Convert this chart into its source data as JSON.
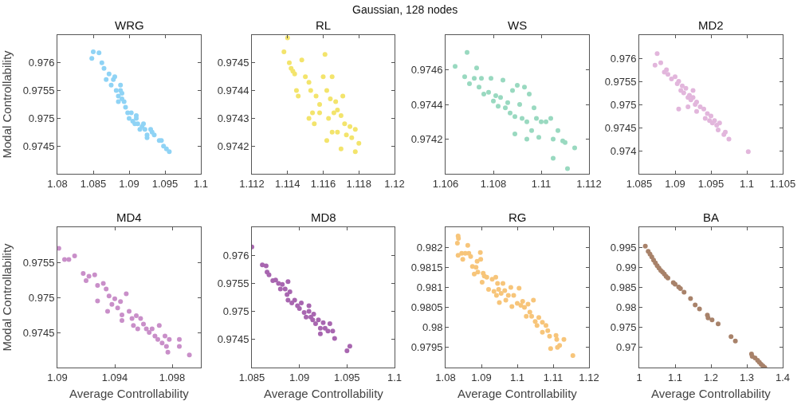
{
  "chart_data": [
    {
      "type": "scatter",
      "title": "WRG",
      "ylabel": "Modal Controllability",
      "annotations": [
        "Gaussian, 128 nodes"
      ],
      "color": "#8fd3f5",
      "marker": "circle",
      "xlim": [
        1.08,
        1.1
      ],
      "ylim": [
        0.974,
        0.9765
      ],
      "xticks": [
        1.08,
        1.085,
        1.09,
        1.095,
        1.1
      ],
      "yticks": [
        0.9745,
        0.975,
        0.9755,
        0.976
      ],
      "x": [
        1.0848,
        1.085,
        1.0858,
        1.0862,
        1.0865,
        1.0868,
        1.0872,
        1.0875,
        1.0878,
        1.088,
        1.0882,
        1.0888,
        1.0885,
        1.089,
        1.0893,
        1.0895,
        1.0885,
        1.0898,
        1.09,
        1.0903,
        1.0905,
        1.0908,
        1.091,
        1.0912,
        1.0915,
        1.0918,
        1.092,
        1.0922,
        1.0925,
        1.093,
        1.0932,
        1.0935,
        1.0925,
        1.0942,
        1.0945,
        1.0948,
        1.0952,
        1.0956,
        1.089,
        1.0888,
        1.091
      ],
      "values": [
        0.97608,
        0.9762,
        0.97618,
        0.976,
        0.9759,
        0.9757,
        0.9758,
        0.9756,
        0.9757,
        0.97575,
        0.9755,
        0.9755,
        0.9754,
        0.97545,
        0.9753,
        0.9752,
        0.9753,
        0.9751,
        0.975,
        0.9751,
        0.97495,
        0.9749,
        0.975,
        0.9749,
        0.9748,
        0.97485,
        0.9749,
        0.9748,
        0.9747,
        0.9748,
        0.97475,
        0.9747,
        0.97465,
        0.9746,
        0.9746,
        0.9745,
        0.97445,
        0.9744,
        0.97535,
        0.9756,
        0.97505
      ]
    },
    {
      "type": "scatter",
      "title": "RL",
      "color": "#f3e46c",
      "marker": "circle",
      "xlim": [
        1.112,
        1.12
      ],
      "ylim": [
        0.9741,
        0.9746
      ],
      "xticks": [
        1.112,
        1.114,
        1.116,
        1.118,
        1.12
      ],
      "yticks": [
        0.9742,
        0.9743,
        0.9744,
        0.9745
      ],
      "x": [
        1.1138,
        1.114,
        1.1141,
        1.1142,
        1.1143,
        1.1144,
        1.1145,
        1.1146,
        1.1148,
        1.115,
        1.1152,
        1.1153,
        1.1154,
        1.1155,
        1.1156,
        1.1158,
        1.116,
        1.1161,
        1.1162,
        1.1164,
        1.1165,
        1.1166,
        1.1167,
        1.1168,
        1.117,
        1.1171,
        1.1172,
        1.1173,
        1.1175,
        1.1176,
        1.1178,
        1.118,
        1.1162,
        1.117,
        1.1152,
        1.1165,
        1.1158,
        1.1178,
        1.1168,
        1.1163
      ],
      "values": [
        0.97454,
        0.97459,
        0.9745,
        0.97448,
        0.97447,
        0.97446,
        0.9744,
        0.97438,
        0.97451,
        0.97445,
        0.97443,
        0.9744,
        0.97432,
        0.97428,
        0.97438,
        0.97435,
        0.97445,
        0.97453,
        0.9744,
        0.97437,
        0.97445,
        0.97432,
        0.97436,
        0.97425,
        0.97431,
        0.97438,
        0.97428,
        0.97424,
        0.97427,
        0.97423,
        0.97418,
        0.97421,
        0.97422,
        0.97419,
        0.9743,
        0.97425,
        0.97432,
        0.97426,
        0.97433,
        0.9743
      ]
    },
    {
      "type": "scatter",
      "title": "WS",
      "color": "#99d9c0",
      "marker": "circle",
      "xlim": [
        1.106,
        1.112
      ],
      "ylim": [
        0.974,
        0.9748
      ],
      "xticks": [
        1.106,
        1.108,
        1.11,
        1.112
      ],
      "yticks": [
        0.9742,
        0.9744,
        0.9746
      ],
      "x": [
        1.1064,
        1.1069,
        1.1068,
        1.107,
        1.1072,
        1.1073,
        1.1074,
        1.1075,
        1.1076,
        1.1078,
        1.1079,
        1.108,
        1.1081,
        1.1082,
        1.1083,
        1.1084,
        1.1085,
        1.1086,
        1.1087,
        1.1088,
        1.1089,
        1.109,
        1.1091,
        1.1092,
        1.1093,
        1.1094,
        1.1095,
        1.1096,
        1.1097,
        1.1098,
        1.1099,
        1.11,
        1.1102,
        1.1104,
        1.1105,
        1.1105,
        1.1107,
        1.1109,
        1.111,
        1.1111,
        1.1114,
        1.1089,
        1.1094
      ],
      "values": [
        0.97462,
        0.9747,
        0.97456,
        0.97452,
        0.97455,
        0.97461,
        0.9745,
        0.97455,
        0.97446,
        0.97447,
        0.97455,
        0.97442,
        0.97445,
        0.97439,
        0.97444,
        0.97454,
        0.97438,
        0.97441,
        0.97435,
        0.97448,
        0.97433,
        0.97451,
        0.9744,
        0.97432,
        0.9745,
        0.9743,
        0.97446,
        0.97425,
        0.97438,
        0.97432,
        0.97421,
        0.9743,
        0.9743,
        0.97432,
        0.9742,
        0.97409,
        0.97425,
        0.97419,
        0.97418,
        0.97403,
        0.97415,
        0.97423,
        0.9742
      ]
    },
    {
      "type": "scatter",
      "title": "MD2",
      "color": "#e2b6dc",
      "marker": "circle",
      "xlim": [
        1.085,
        1.105
      ],
      "ylim": [
        0.9735,
        0.9765
      ],
      "xticks": [
        1.085,
        1.09,
        1.095,
        1.1,
        1.105
      ],
      "yticks": [
        0.974,
        0.9745,
        0.975,
        0.9755,
        0.976
      ],
      "x": [
        1.0875,
        1.0872,
        1.088,
        1.0885,
        1.0888,
        1.089,
        1.0895,
        1.09,
        1.0903,
        1.0905,
        1.0908,
        1.091,
        1.0912,
        1.0915,
        1.0918,
        1.092,
        1.0922,
        1.0925,
        1.0928,
        1.093,
        1.0918,
        1.093,
        1.0935,
        1.094,
        1.0942,
        1.0945,
        1.0948,
        1.095,
        1.0952,
        1.0955,
        1.0958,
        1.096,
        1.0962,
        1.0968,
        1.097,
        1.0975,
        1.1002,
        1.0905,
        1.0925
      ],
      "values": [
        0.9761,
        0.97585,
        0.9759,
        0.9757,
        0.97575,
        0.97565,
        0.97555,
        0.9756,
        0.97545,
        0.9755,
        0.9753,
        0.9754,
        0.97525,
        0.97535,
        0.97515,
        0.9752,
        0.9751,
        0.97515,
        0.975,
        0.97505,
        0.97495,
        0.97485,
        0.97495,
        0.9749,
        0.9747,
        0.9748,
        0.97465,
        0.97475,
        0.9746,
        0.97465,
        0.97455,
        0.97445,
        0.9746,
        0.97435,
        0.9744,
        0.97425,
        0.97398,
        0.9749,
        0.9753
      ]
    },
    {
      "type": "scatter",
      "title": "MD4",
      "xlabel": "Average Controllability",
      "ylabel": "Modal Controllability",
      "color": "#c98fc9",
      "marker": "circle",
      "xlim": [
        1.09,
        1.1
      ],
      "ylim": [
        0.974,
        0.976
      ],
      "xticks": [
        1.09,
        1.094,
        1.098
      ],
      "yticks": [
        0.9745,
        0.975,
        0.9755
      ],
      "x": [
        1.0901,
        1.0905,
        1.0908,
        1.0912,
        1.0918,
        1.092,
        1.0922,
        1.0926,
        1.0928,
        1.0928,
        1.0932,
        1.0934,
        1.0936,
        1.0938,
        1.094,
        1.0942,
        1.0944,
        1.0945,
        1.0948,
        1.095,
        1.0952,
        1.0953,
        1.0955,
        1.0956,
        1.0958,
        1.096,
        1.0962,
        1.0964,
        1.0966,
        1.0968,
        1.097,
        1.0971,
        1.0973,
        1.0975,
        1.0976,
        1.0978,
        1.0977,
        1.0985,
        1.0985,
        1.0992,
        1.0935,
        1.0945
      ],
      "values": [
        0.9757,
        0.97554,
        0.97554,
        0.97559,
        0.97534,
        0.97524,
        0.9753,
        0.97532,
        0.97517,
        0.97495,
        0.9752,
        0.97512,
        0.97502,
        0.9749,
        0.97498,
        0.97485,
        0.97494,
        0.97475,
        0.97505,
        0.9748,
        0.9747,
        0.9746,
        0.97474,
        0.97455,
        0.9747,
        0.97462,
        0.97455,
        0.9745,
        0.97455,
        0.97445,
        0.9744,
        0.9746,
        0.97435,
        0.97445,
        0.9743,
        0.9744,
        0.97422,
        0.9744,
        0.9743,
        0.97418,
        0.9748,
        0.97467
      ]
    },
    {
      "type": "scatter",
      "title": "MD8",
      "xlabel": "Average Controllability",
      "color": "#a866b0",
      "marker": "circle",
      "xlim": [
        1.085,
        1.1
      ],
      "ylim": [
        0.974,
        0.9765
      ],
      "xticks": [
        1.085,
        1.09,
        1.095,
        1.1
      ],
      "yticks": [
        0.9745,
        0.975,
        0.9755,
        0.976
      ],
      "x": [
        1.085,
        1.0861,
        1.0865,
        1.0866,
        1.0868,
        1.0872,
        1.0875,
        1.0878,
        1.088,
        1.0882,
        1.0885,
        1.0887,
        1.0888,
        1.089,
        1.0888,
        1.0892,
        1.0895,
        1.0898,
        1.09,
        1.0902,
        1.0905,
        1.0907,
        1.091,
        1.0912,
        1.0914,
        1.0915,
        1.0917,
        1.092,
        1.0922,
        1.0925,
        1.0927,
        1.093,
        1.0932,
        1.0935,
        1.0937,
        1.0922,
        1.095,
        1.0953,
        1.091
      ],
      "values": [
        0.97615,
        0.97583,
        0.97581,
        0.9757,
        0.97565,
        0.97555,
        0.97556,
        0.9755,
        0.9754,
        0.97548,
        0.9754,
        0.9753,
        0.97553,
        0.97535,
        0.9752,
        0.97515,
        0.9752,
        0.9751,
        0.97505,
        0.97515,
        0.97498,
        0.9749,
        0.975,
        0.9749,
        0.97485,
        0.97495,
        0.97478,
        0.97485,
        0.9747,
        0.9748,
        0.9747,
        0.97465,
        0.97478,
        0.97465,
        0.97452,
        0.9746,
        0.9743,
        0.97438,
        0.9751
      ]
    },
    {
      "type": "scatter",
      "title": "RG",
      "xlabel": "Average Controllability",
      "color": "#f7c57a",
      "marker": "circle",
      "xlim": [
        1.08,
        1.12
      ],
      "ylim": [
        0.979,
        0.9825
      ],
      "xticks": [
        1.08,
        1.09,
        1.1,
        1.11,
        1.12
      ],
      "yticks": [
        0.9795,
        0.98,
        0.9805,
        0.981,
        0.9815,
        0.982
      ],
      "x": [
        1.0833,
        1.0835,
        1.0836,
        1.0835,
        1.0845,
        1.0848,
        1.0855,
        1.0862,
        1.0865,
        1.087,
        1.0875,
        1.088,
        1.0885,
        1.0888,
        1.089,
        1.0897,
        1.0898,
        1.0902,
        1.0905,
        1.0908,
        1.0915,
        1.092,
        1.093,
        1.0935,
        1.094,
        1.0942,
        1.0945,
        1.0948,
        1.095,
        1.0955,
        1.096,
        1.0965,
        1.0968,
        1.0975,
        1.0982,
        1.0985,
        1.099,
        1.1,
        1.1005,
        1.101,
        1.1015,
        1.102,
        1.1025,
        1.103,
        1.1035,
        1.104,
        1.1045,
        1.105,
        1.1055,
        1.106,
        1.107,
        1.107,
        1.108,
        1.1085,
        1.109,
        1.1093,
        1.1108,
        1.111,
        1.1112,
        1.1118,
        1.113,
        1.1155
      ],
      "values": [
        0.9821,
        0.98228,
        0.98222,
        0.9818,
        0.98185,
        0.9817,
        0.98185,
        0.98205,
        0.98185,
        0.98177,
        0.98152,
        0.98133,
        0.9815,
        0.98165,
        0.98138,
        0.98187,
        0.9817,
        0.98113,
        0.98135,
        0.98128,
        0.98125,
        0.98095,
        0.9812,
        0.9809,
        0.98125,
        0.9808,
        0.9811,
        0.98095,
        0.98062,
        0.98085,
        0.9811,
        0.98092,
        0.98068,
        0.9808,
        0.981,
        0.98052,
        0.9808,
        0.9806,
        0.98098,
        0.98055,
        0.98065,
        0.9805,
        0.98028,
        0.98058,
        0.98038,
        0.98028,
        0.98068,
        0.98015,
        0.98005,
        0.98025,
        0.98013,
        0.97988,
        0.98005,
        0.97992,
        0.97978,
        0.97947,
        0.9798,
        0.9797,
        0.9795,
        0.97955,
        0.9797,
        0.9793
      ]
    },
    {
      "type": "scatter",
      "title": "BA",
      "xlabel": "Average Controllability",
      "color": "#a8826a",
      "marker": "circle",
      "xlim": [
        1,
        1.4
      ],
      "ylim": [
        0.965,
        1
      ],
      "xticks": [
        1,
        1.1,
        1.2,
        1.3,
        1.4
      ],
      "yticks": [
        0.97,
        0.975,
        0.98,
        0.985,
        0.99,
        0.995
      ],
      "x": [
        1.017,
        1.025,
        1.03,
        1.035,
        1.04,
        1.045,
        1.05,
        1.055,
        1.06,
        1.065,
        1.07,
        1.075,
        1.08,
        1.095,
        1.1,
        1.11,
        1.115,
        1.125,
        1.143,
        1.156,
        1.168,
        1.19,
        1.192,
        1.203,
        1.22,
        1.256,
        1.268,
        1.313,
        1.315,
        1.323,
        1.33,
        1.335,
        1.34,
        1.345,
        1.35
      ],
      "values": [
        0.9953,
        0.994,
        0.9933,
        0.9926,
        0.9918,
        0.9911,
        0.9904,
        0.9898,
        0.9892,
        0.9888,
        0.9883,
        0.9877,
        0.9873,
        0.9862,
        0.9858,
        0.9851,
        0.9847,
        0.9838,
        0.9822,
        0.9806,
        0.9796,
        0.9781,
        0.9774,
        0.9769,
        0.9759,
        0.9727,
        0.9716,
        0.9684,
        0.9678,
        0.9674,
        0.9668,
        0.9663,
        0.9658,
        0.9654,
        0.965
      ]
    }
  ]
}
